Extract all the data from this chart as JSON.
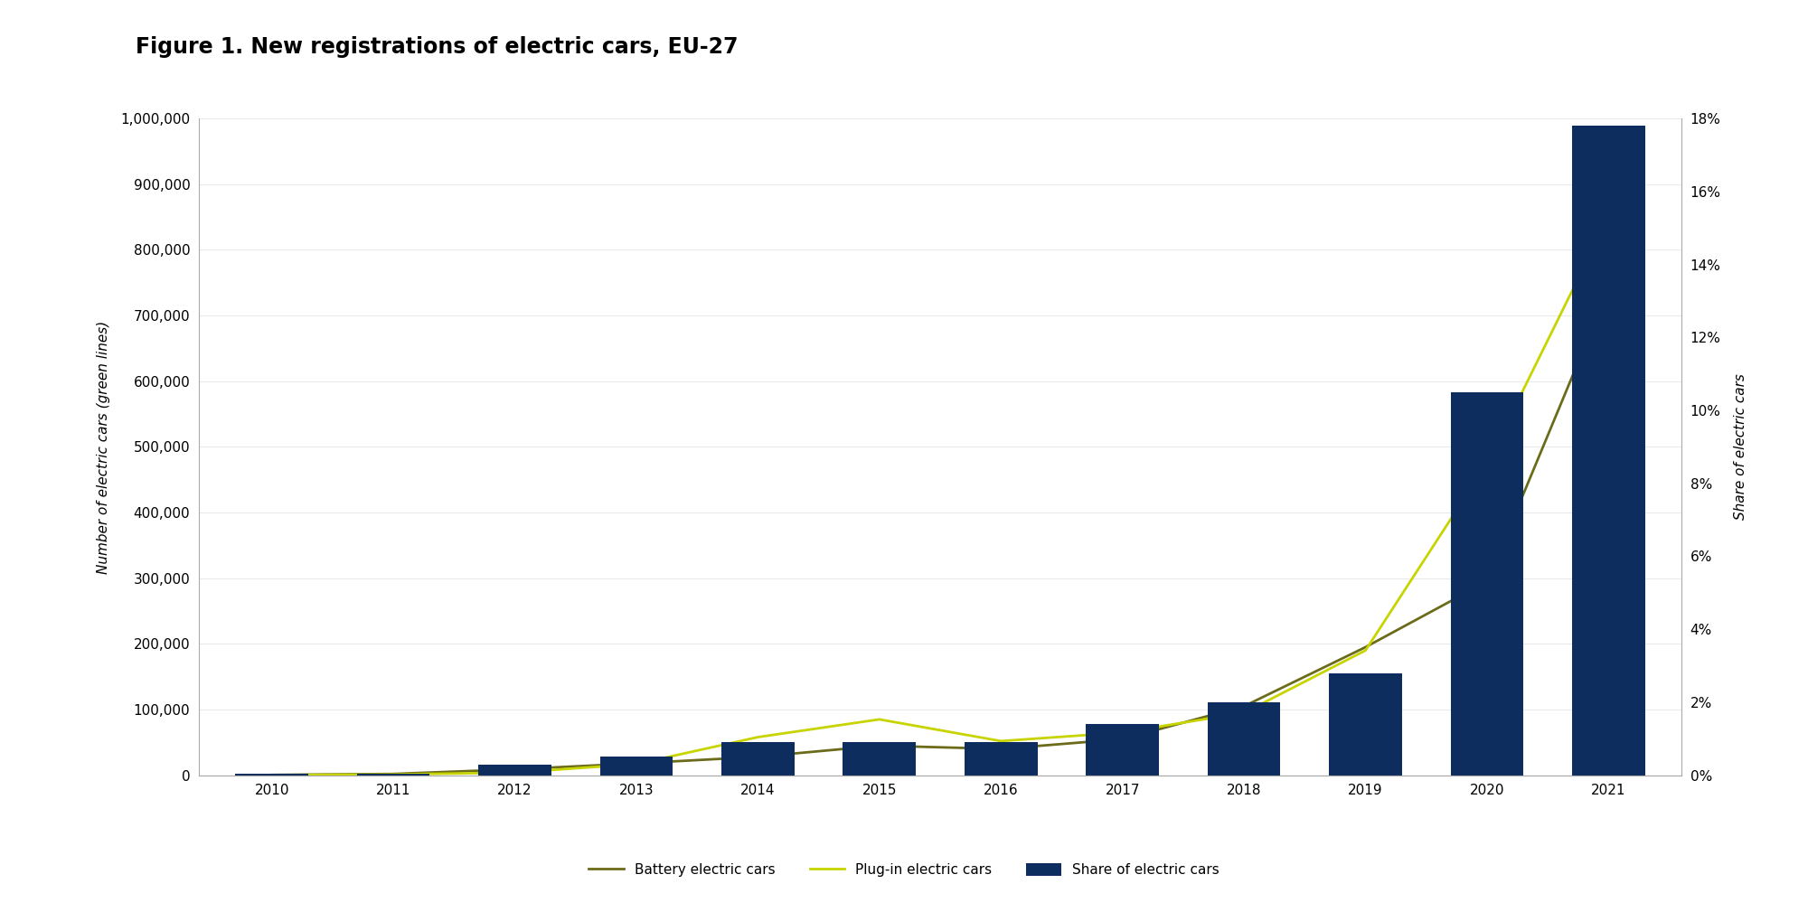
{
  "title": "Figure 1. New registrations of electric cars, EU-27",
  "years": [
    2010,
    2011,
    2012,
    2013,
    2014,
    2015,
    2016,
    2017,
    2018,
    2019,
    2020,
    2021
  ],
  "battery_ev": [
    500,
    2000,
    9000,
    18000,
    28000,
    45000,
    40000,
    55000,
    105000,
    195000,
    295000,
    740000
  ],
  "plugin_hybrid": [
    200,
    1200,
    4000,
    17000,
    58000,
    85000,
    52000,
    65000,
    95000,
    190000,
    475000,
    850000
  ],
  "share_pct": [
    0.0003,
    0.0005,
    0.003,
    0.005,
    0.009,
    0.009,
    0.009,
    0.014,
    0.02,
    0.028,
    0.105,
    0.178
  ],
  "bar_color": "#0d2d5e",
  "battery_color": "#6b6b1a",
  "plugin_color": "#c8d400",
  "left_ylabel": "Number of electric cars (green lines)",
  "right_ylabel": "Share of electric cars",
  "ylim_left": [
    0,
    1000000
  ],
  "ylim_right": [
    0,
    0.18
  ],
  "yticks_left": [
    0,
    100000,
    200000,
    300000,
    400000,
    500000,
    600000,
    700000,
    800000,
    900000,
    1000000
  ],
  "yticks_right": [
    0,
    0.02,
    0.04,
    0.06,
    0.08,
    0.1,
    0.12,
    0.14,
    0.16,
    0.18
  ],
  "legend_labels": [
    "Battery electric cars",
    "Plug-in electric cars",
    "Share of electric cars"
  ],
  "background_color": "#ffffff",
  "title_fontsize": 17,
  "axis_fontsize": 11,
  "tick_fontsize": 11
}
